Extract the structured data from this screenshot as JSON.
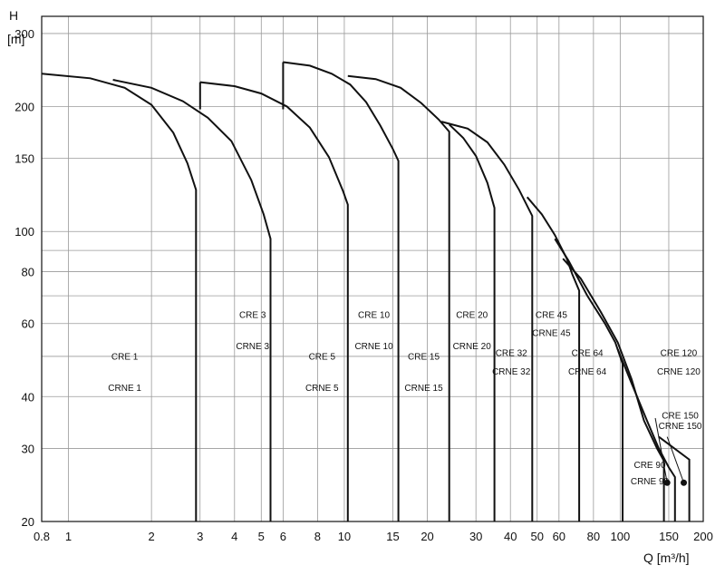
{
  "chart_data": {
    "type": "line",
    "title": "",
    "xlabel": "Q [m³/h]",
    "ylabel": "H [m]",
    "ylabel_symbol": "H",
    "ylabel_unit": "[m]",
    "xscale": "log",
    "yscale": "log",
    "xlim": [
      0.8,
      200
    ],
    "ylim": [
      20,
      330
    ],
    "grid": true,
    "x_ticks": [
      {
        "v": 0.8,
        "label": "0.8"
      },
      {
        "v": 1,
        "label": "1"
      },
      {
        "v": 2,
        "label": "2"
      },
      {
        "v": 3,
        "label": "3"
      },
      {
        "v": 4,
        "label": "4"
      },
      {
        "v": 5,
        "label": "5"
      },
      {
        "v": 6,
        "label": "6"
      },
      {
        "v": 8,
        "label": "8"
      },
      {
        "v": 10,
        "label": "10"
      },
      {
        "v": 15,
        "label": "15"
      },
      {
        "v": 20,
        "label": "20"
      },
      {
        "v": 30,
        "label": "30"
      },
      {
        "v": 40,
        "label": "40"
      },
      {
        "v": 50,
        "label": "50"
      },
      {
        "v": 60,
        "label": "60"
      },
      {
        "v": 80,
        "label": "80"
      },
      {
        "v": 100,
        "label": "100"
      },
      {
        "v": 150,
        "label": "150"
      },
      {
        "v": 200,
        "label": "200"
      }
    ],
    "y_ticks": [
      {
        "v": 20,
        "label": "20"
      },
      {
        "v": 30,
        "label": "30"
      },
      {
        "v": 40,
        "label": "40"
      },
      {
        "v": 60,
        "label": "60"
      },
      {
        "v": 80,
        "label": "80"
      },
      {
        "v": 100,
        "label": "100"
      },
      {
        "v": 150,
        "label": "150"
      },
      {
        "v": 200,
        "label": "200"
      },
      {
        "v": 300,
        "label": "300"
      }
    ],
    "y_minor_grid": [
      50,
      70,
      90
    ],
    "series": [
      {
        "name": "CRE 1 / CRNE 1",
        "points": [
          [
            0.8,
            240
          ],
          [
            1.2,
            234
          ],
          [
            1.6,
            222
          ],
          [
            2.0,
            202
          ],
          [
            2.4,
            173
          ],
          [
            2.7,
            146
          ],
          [
            2.9,
            126
          ],
          [
            2.9,
            20
          ]
        ]
      },
      {
        "name": "CRE 3 / CRNE 3",
        "points": [
          [
            1.45,
            232
          ],
          [
            2.0,
            222
          ],
          [
            2.6,
            206
          ],
          [
            3.2,
            188
          ],
          [
            3.9,
            165
          ],
          [
            4.6,
            133
          ],
          [
            5.1,
            110
          ],
          [
            5.4,
            96
          ],
          [
            5.4,
            20
          ]
        ]
      },
      {
        "name": "CRE 3 / CRNE 3 (upper)",
        "points": [
          [
            3.0,
            229
          ],
          [
            3.0,
            197
          ]
        ]
      },
      {
        "name": "CRE 5 / CRNE 5",
        "points": [
          [
            3.0,
            229
          ],
          [
            4.0,
            224
          ],
          [
            5.0,
            215
          ],
          [
            6.2,
            200
          ],
          [
            7.5,
            178
          ],
          [
            8.8,
            151
          ],
          [
            9.9,
            125
          ],
          [
            10.3,
            116
          ],
          [
            10.3,
            20
          ]
        ]
      },
      {
        "name": "CRE 5 / CRNE 5 (upper)",
        "points": [
          [
            6.0,
            256
          ],
          [
            6.0,
            197
          ]
        ]
      },
      {
        "name": "CRE 10 / CRNE 10",
        "points": [
          [
            6.0,
            256
          ],
          [
            7.5,
            251
          ],
          [
            9.0,
            240
          ],
          [
            10.5,
            226
          ],
          [
            12.0,
            205
          ],
          [
            13.5,
            180
          ],
          [
            15.0,
            158
          ],
          [
            15.7,
            148
          ],
          [
            15.7,
            20
          ]
        ]
      },
      {
        "name": "CRE 15 / CRNE 15",
        "points": [
          [
            10.3,
            237
          ],
          [
            13.0,
            233
          ],
          [
            16.0,
            222
          ],
          [
            19.0,
            204
          ],
          [
            22.0,
            186
          ],
          [
            24.0,
            174
          ],
          [
            24.0,
            20
          ]
        ]
      },
      {
        "name": "CRE 20 / CRNE 20",
        "points": [
          [
            24.0,
            181
          ],
          [
            27.0,
            168
          ],
          [
            30.0,
            152
          ],
          [
            33.0,
            131
          ],
          [
            35.0,
            114
          ],
          [
            35.0,
            20
          ]
        ]
      },
      {
        "name": "CRE 32 / CRNE 32",
        "points": [
          [
            22.5,
            184
          ],
          [
            28.0,
            177
          ],
          [
            33.0,
            164
          ],
          [
            38.0,
            145
          ],
          [
            43.0,
            126
          ],
          [
            48.0,
            109
          ],
          [
            48.0,
            20
          ]
        ]
      },
      {
        "name": "CRE 45 / CRNE 45",
        "points": [
          [
            46.0,
            121
          ],
          [
            52.0,
            110
          ],
          [
            58.0,
            98
          ],
          [
            64.0,
            86
          ],
          [
            67.0,
            79
          ],
          [
            71.0,
            72
          ],
          [
            71.0,
            20
          ]
        ]
      },
      {
        "name": "CRE 64 / CRNE 64",
        "points": [
          [
            58.0,
            96
          ],
          [
            65.0,
            85
          ],
          [
            76.0,
            70
          ],
          [
            88.0,
            60
          ],
          [
            96.0,
            54
          ],
          [
            102.0,
            48
          ],
          [
            102.0,
            20
          ]
        ]
      },
      {
        "name": "CRE 90 / CRNE 90",
        "points": [
          [
            62.0,
            86
          ],
          [
            72.0,
            77
          ],
          [
            85.0,
            64
          ],
          [
            98.0,
            54
          ],
          [
            110.0,
            44
          ],
          [
            122.0,
            35
          ],
          [
            136.0,
            30
          ],
          [
            144.0,
            28
          ],
          [
            144.0,
            20
          ]
        ]
      },
      {
        "name": "CRE 120 / CRNE 120",
        "points": [
          [
            98.0,
            52
          ],
          [
            110.0,
            43
          ],
          [
            125.0,
            35
          ],
          [
            138.0,
            30
          ],
          [
            150.0,
            27
          ],
          [
            158.0,
            25.6
          ],
          [
            158.0,
            20
          ]
        ]
      },
      {
        "name": "CRE 150 / CRNE 150",
        "points": [
          [
            138.0,
            32
          ],
          [
            178.0,
            28.2
          ],
          [
            178.0,
            20
          ]
        ]
      }
    ],
    "labels": [
      {
        "text": "CRE 1",
        "x": 1.6,
        "y": 50
      },
      {
        "text": "CRNE 1",
        "x": 1.6,
        "y": 42
      },
      {
        "text": "CRE 3",
        "x": 4.65,
        "y": 63
      },
      {
        "text": "CRNE 3",
        "x": 4.65,
        "y": 53
      },
      {
        "text": "CRE 5",
        "x": 8.3,
        "y": 50
      },
      {
        "text": "CRNE 5",
        "x": 8.3,
        "y": 42
      },
      {
        "text": "CRE 10",
        "x": 12.8,
        "y": 63
      },
      {
        "text": "CRNE 10",
        "x": 12.8,
        "y": 53
      },
      {
        "text": "CRE 15",
        "x": 19.4,
        "y": 50
      },
      {
        "text": "CRNE 15",
        "x": 19.4,
        "y": 42
      },
      {
        "text": "CRE 20",
        "x": 29.0,
        "y": 63
      },
      {
        "text": "CRNE 20",
        "x": 29.0,
        "y": 53
      },
      {
        "text": "CRE 32",
        "x": 40.3,
        "y": 51
      },
      {
        "text": "CRNE 32",
        "x": 40.3,
        "y": 46
      },
      {
        "text": "CRE 45",
        "x": 56.3,
        "y": 63
      },
      {
        "text": "CRNE 45",
        "x": 56.3,
        "y": 57
      },
      {
        "text": "CRE 64",
        "x": 76.0,
        "y": 51
      },
      {
        "text": "CRNE 64",
        "x": 76.0,
        "y": 46
      },
      {
        "text": "CRE 120",
        "x": 163.0,
        "y": 51
      },
      {
        "text": "CRNE 120",
        "x": 163.0,
        "y": 46
      },
      {
        "text": "CRE 150",
        "x": 165.0,
        "y": 36
      },
      {
        "text": "CRNE 150",
        "x": 165.0,
        "y": 34
      },
      {
        "text": "CRE 90",
        "x": 128.0,
        "y": 27.4
      },
      {
        "text": "CRNE 90",
        "x": 128.0,
        "y": 25.0
      }
    ],
    "callouts": [
      {
        "from": [
          134.0,
          35.5
        ],
        "to": [
          148.0,
          24.8
        ]
      },
      {
        "from": [
          148.0,
          32.0
        ],
        "to": [
          170.0,
          24.8
        ]
      }
    ],
    "markers": [
      {
        "x": 148.0,
        "y": 24.8
      },
      {
        "x": 170.0,
        "y": 24.8
      }
    ]
  }
}
